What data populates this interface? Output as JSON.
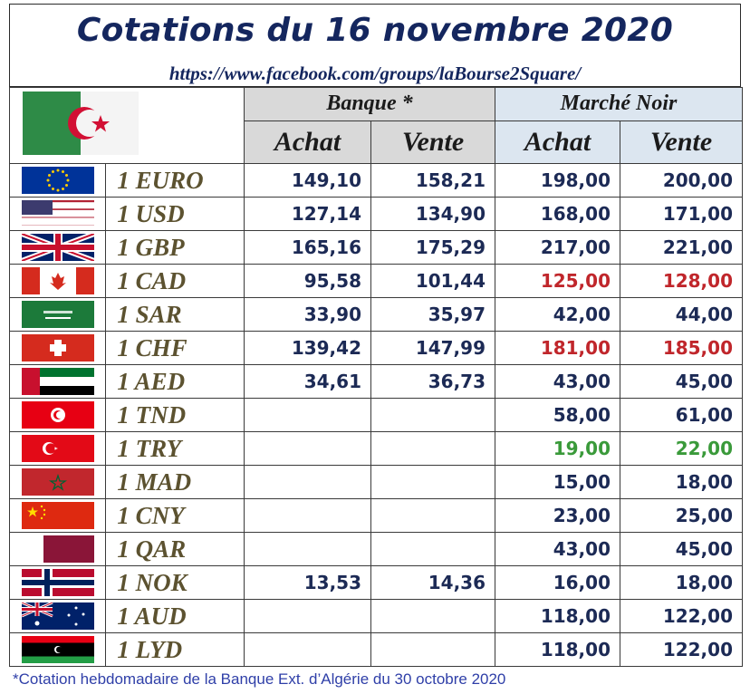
{
  "title": "Cotations du 16 novembre 2020",
  "url": "https://www.facebook.com/groups/laBourse2Square/",
  "headers": {
    "banque": "Banque *",
    "marche_noir": "Marché Noir",
    "achat": "Achat",
    "vente": "Vente"
  },
  "header_flag": "algeria-flag",
  "rows": [
    {
      "currency": "1 EURO",
      "flag": "eu-flag",
      "banque_achat": "149,10",
      "banque_vente": "158,21",
      "noir_achat": "198,00",
      "noir_vente": "200,00",
      "noir_color": "#1c2a55"
    },
    {
      "currency": "1 USD",
      "flag": "usa-flag",
      "banque_achat": "127,14",
      "banque_vente": "134,90",
      "noir_achat": "168,00",
      "noir_vente": "171,00",
      "noir_color": "#1c2a55"
    },
    {
      "currency": "1 GBP",
      "flag": "uk-flag",
      "banque_achat": "165,16",
      "banque_vente": "175,29",
      "noir_achat": "217,00",
      "noir_vente": "221,00",
      "noir_color": "#1c2a55"
    },
    {
      "currency": "1 CAD",
      "flag": "canada-flag",
      "banque_achat": "95,58",
      "banque_vente": "101,44",
      "noir_achat": "125,00",
      "noir_vente": "128,00",
      "noir_color": "#c0262b"
    },
    {
      "currency": "1 SAR",
      "flag": "saudi-flag",
      "banque_achat": "33,90",
      "banque_vente": "35,97",
      "noir_achat": "42,00",
      "noir_vente": "44,00",
      "noir_color": "#1c2a55"
    },
    {
      "currency": "1 CHF",
      "flag": "swiss-flag",
      "banque_achat": "139,42",
      "banque_vente": "147,99",
      "noir_achat": "181,00",
      "noir_vente": "185,00",
      "noir_color": "#c0262b"
    },
    {
      "currency": "1 AED",
      "flag": "uae-flag",
      "banque_achat": "34,61",
      "banque_vente": "36,73",
      "noir_achat": "43,00",
      "noir_vente": "45,00",
      "noir_color": "#1c2a55"
    },
    {
      "currency": "1 TND",
      "flag": "tunisia-flag",
      "banque_achat": "",
      "banque_vente": "",
      "noir_achat": "58,00",
      "noir_vente": "61,00",
      "noir_color": "#1c2a55"
    },
    {
      "currency": "1 TRY",
      "flag": "turkey-flag",
      "banque_achat": "",
      "banque_vente": "",
      "noir_achat": "19,00",
      "noir_vente": "22,00",
      "noir_color": "#3a9a3a"
    },
    {
      "currency": "1 MAD",
      "flag": "morocco-flag",
      "banque_achat": "",
      "banque_vente": "",
      "noir_achat": "15,00",
      "noir_vente": "18,00",
      "noir_color": "#1c2a55"
    },
    {
      "currency": "1 CNY",
      "flag": "china-flag",
      "banque_achat": "",
      "banque_vente": "",
      "noir_achat": "23,00",
      "noir_vente": "25,00",
      "noir_color": "#1c2a55"
    },
    {
      "currency": "1 QAR",
      "flag": "qatar-flag",
      "banque_achat": "",
      "banque_vente": "",
      "noir_achat": "43,00",
      "noir_vente": "45,00",
      "noir_color": "#1c2a55"
    },
    {
      "currency": "1 NOK",
      "flag": "norway-flag",
      "banque_achat": "13,53",
      "banque_vente": "14,36",
      "noir_achat": "16,00",
      "noir_vente": "18,00",
      "noir_color": "#1c2a55"
    },
    {
      "currency": "1 AUD",
      "flag": "australia-flag",
      "banque_achat": "",
      "banque_vente": "",
      "noir_achat": "118,00",
      "noir_vente": "122,00",
      "noir_color": "#1c2a55"
    },
    {
      "currency": "1 LYD",
      "flag": "libya-flag",
      "banque_achat": "",
      "banque_vente": "",
      "noir_achat": "118,00",
      "noir_vente": "122,00",
      "noir_color": "#1c2a55"
    }
  ],
  "footnote": "*Cotation hebdomadaire de la Banque Ext. d’Algérie du 30 octobre 2020"
}
